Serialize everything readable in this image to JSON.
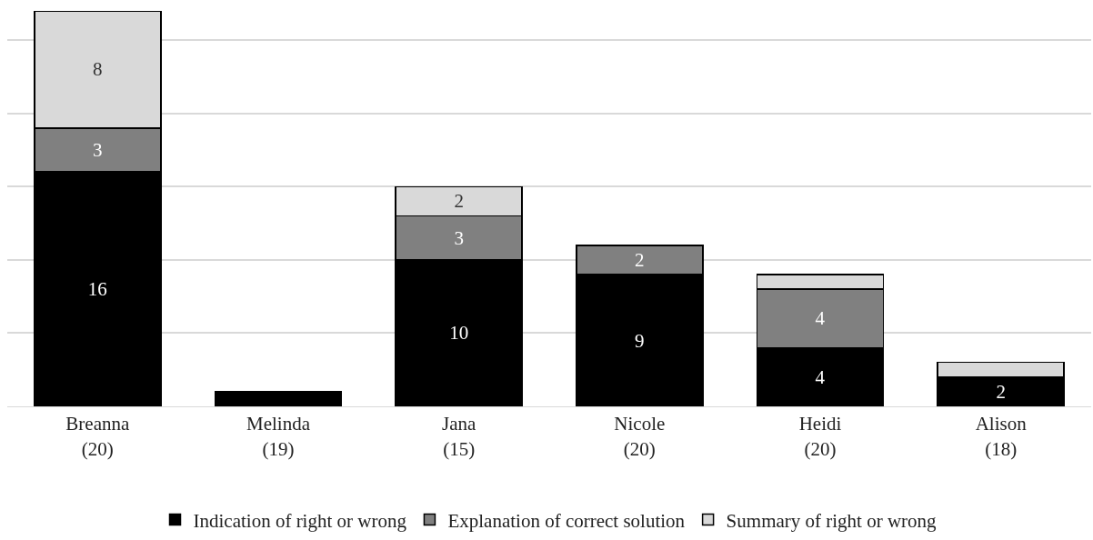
{
  "chart_data": {
    "type": "bar",
    "stacked": true,
    "categories": [
      "Breanna\n(20)",
      "Melinda\n(19)",
      "Jana\n(15)",
      "Nicole\n(20)",
      "Heidi\n(20)",
      "Alison\n(18)"
    ],
    "series": [
      {
        "name": "Indication of right or wrong",
        "color": "#000000",
        "values": [
          16,
          1,
          10,
          9,
          4,
          2
        ],
        "value_labels": [
          "16",
          null,
          "10",
          "9",
          "4",
          "2"
        ]
      },
      {
        "name": "Explanation of correct solution",
        "color": "#808080",
        "values": [
          3,
          0,
          3,
          2,
          4,
          0
        ],
        "value_labels": [
          "3",
          null,
          "3",
          "2",
          "4",
          null
        ]
      },
      {
        "name": "Summary of right or wrong",
        "color": "#d9d9d9",
        "values": [
          8,
          0,
          2,
          0,
          1,
          1
        ],
        "value_labels": [
          "8",
          null,
          "2",
          null,
          null,
          null
        ]
      }
    ],
    "ylim": [
      0,
      27
    ],
    "yticks": [
      {
        "value": 0,
        "label": null
      },
      {
        "value": 5,
        "label": null
      },
      {
        "value": 10,
        "label": null
      },
      {
        "value": 15,
        "label": null
      },
      {
        "value": 20,
        "label": null
      },
      {
        "value": 25,
        "label": null
      }
    ],
    "tick_labels": "x",
    "grid": "y",
    "legend": "bottom"
  }
}
